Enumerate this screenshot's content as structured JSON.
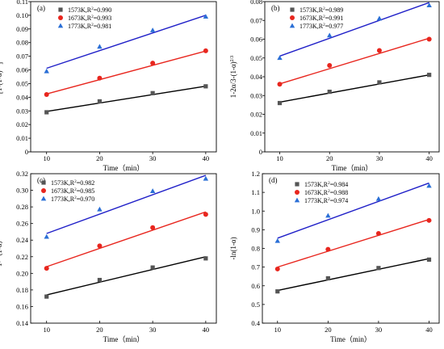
{
  "chart_data": [
    {
      "type": "scatter",
      "panel_label": "(a)",
      "xlabel": "Time（min）",
      "ylabel": "[1-(1-α)^{1/3}]^2",
      "xlim": [
        7,
        42
      ],
      "xticks": [
        10,
        20,
        30,
        40
      ],
      "ylim": [
        0,
        0.11
      ],
      "yticks": [
        "0",
        "0.01",
        "0.02",
        "0.03",
        "0.04",
        "0.05",
        "0.06",
        "0.07",
        "0.08",
        "0.09",
        "0.10",
        "0.11"
      ],
      "legend_position": "top-left",
      "series": [
        {
          "name": "1573K,R²=0.990",
          "marker": "square",
          "color": "#555555",
          "line_color": "#000000",
          "x": [
            10,
            20,
            30,
            40
          ],
          "y": [
            0.029,
            0.037,
            0.043,
            0.048
          ],
          "fit": [
            0.0296,
            0.0481
          ]
        },
        {
          "name": "1673K,R²=0.993",
          "marker": "circle",
          "color": "#e8261e",
          "line_color": "#e8261e",
          "x": [
            10,
            20,
            30,
            40
          ],
          "y": [
            0.042,
            0.054,
            0.065,
            0.074
          ],
          "fit": [
            0.0424,
            0.0738
          ]
        },
        {
          "name": "1773K,R²=0.981",
          "marker": "triangle",
          "color": "#2a6fd6",
          "line_color": "#2020c8",
          "x": [
            10,
            20,
            30,
            40
          ],
          "y": [
            0.059,
            0.077,
            0.089,
            0.099
          ],
          "fit": [
            0.0612,
            0.1
          ]
        }
      ]
    },
    {
      "type": "scatter",
      "panel_label": "(b)",
      "xlabel": "Time（min）",
      "ylabel": "1-2α/3-(1-α)^{2/3}",
      "xlim": [
        7,
        42
      ],
      "xticks": [
        10,
        20,
        30,
        40
      ],
      "ylim": [
        0,
        0.08
      ],
      "yticks": [
        "0",
        "0.01",
        "0.02",
        "0.03",
        "0.04",
        "0.05",
        "0.06",
        "0.07",
        "0.08"
      ],
      "legend_position": "top-left",
      "series": [
        {
          "name": "1573K,R²=0.989",
          "marker": "square",
          "color": "#555555",
          "line_color": "#000000",
          "x": [
            10,
            20,
            30,
            40
          ],
          "y": [
            0.026,
            0.032,
            0.037,
            0.041
          ],
          "fit": [
            0.0265,
            0.041
          ]
        },
        {
          "name": "1673K,R²=0.991",
          "marker": "circle",
          "color": "#e8261e",
          "line_color": "#e8261e",
          "x": [
            10,
            20,
            30,
            40
          ],
          "y": [
            0.036,
            0.046,
            0.054,
            0.06
          ],
          "fit": [
            0.0362,
            0.0605
          ]
        },
        {
          "name": "1773K,R²=0.977",
          "marker": "triangle",
          "color": "#2a6fd6",
          "line_color": "#2020c8",
          "x": [
            10,
            20,
            30,
            40
          ],
          "y": [
            0.05,
            0.062,
            0.071,
            0.078
          ],
          "fit": [
            0.051,
            0.0795
          ]
        }
      ]
    },
    {
      "type": "scatter",
      "panel_label": "(c)",
      "xlabel": "Time（min）",
      "ylabel": "1-（1-α）^{1/3}",
      "xlim": [
        7,
        42
      ],
      "xticks": [
        10,
        20,
        30,
        40
      ],
      "ylim": [
        0.14,
        0.32
      ],
      "yticks": [
        "0.14",
        "0.16",
        "0.18",
        "0.20",
        "0.22",
        "0.24",
        "0.26",
        "0.28",
        "0.30",
        "0.32"
      ],
      "legend_position": "top-left",
      "series": [
        {
          "name": "1573K,R²=0.982",
          "marker": "square",
          "color": "#555555",
          "line_color": "#000000",
          "x": [
            10,
            20,
            30,
            40
          ],
          "y": [
            0.172,
            0.192,
            0.207,
            0.218
          ],
          "fit": [
            0.174,
            0.22
          ]
        },
        {
          "name": "1673K,R²=0.985",
          "marker": "circle",
          "color": "#e8261e",
          "line_color": "#e8261e",
          "x": [
            10,
            20,
            30,
            40
          ],
          "y": [
            0.206,
            0.233,
            0.255,
            0.271
          ],
          "fit": [
            0.208,
            0.274
          ]
        },
        {
          "name": "1773K,R²=0.970",
          "marker": "triangle",
          "color": "#2a6fd6",
          "line_color": "#2020c8",
          "x": [
            10,
            20,
            30,
            40
          ],
          "y": [
            0.244,
            0.277,
            0.299,
            0.314
          ],
          "fit": [
            0.248,
            0.318
          ]
        }
      ]
    },
    {
      "type": "scatter",
      "panel_label": "(d)",
      "xlabel": "Time（min）",
      "ylabel": "-ln(1-α)",
      "xlim": [
        7,
        42
      ],
      "xticks": [
        10,
        20,
        30,
        40
      ],
      "ylim": [
        0.4,
        1.2
      ],
      "yticks": [
        "0.4",
        "0.5",
        "0.6",
        "0.7",
        "0.8",
        "0.9",
        "1.0",
        "1.1",
        "1.2"
      ],
      "legend_position": "top-left",
      "series": [
        {
          "name": "1573K,R²=0.984",
          "marker": "square",
          "color": "#555555",
          "line_color": "#000000",
          "x": [
            10,
            20,
            30,
            40
          ],
          "y": [
            0.57,
            0.64,
            0.695,
            0.74
          ],
          "fit": [
            0.575,
            0.745
          ]
        },
        {
          "name": "1673K,R²=0.988",
          "marker": "circle",
          "color": "#e8261e",
          "line_color": "#e8261e",
          "x": [
            10,
            20,
            30,
            40
          ],
          "y": [
            0.69,
            0.795,
            0.88,
            0.95
          ],
          "fit": [
            0.7,
            0.955
          ]
        },
        {
          "name": "1773K,R²=0.974",
          "marker": "triangle",
          "color": "#2a6fd6",
          "line_color": "#2020c8",
          "x": [
            10,
            20,
            30,
            40
          ],
          "y": [
            0.84,
            0.975,
            1.065,
            1.135
          ],
          "fit": [
            0.855,
            1.15
          ]
        }
      ]
    }
  ]
}
